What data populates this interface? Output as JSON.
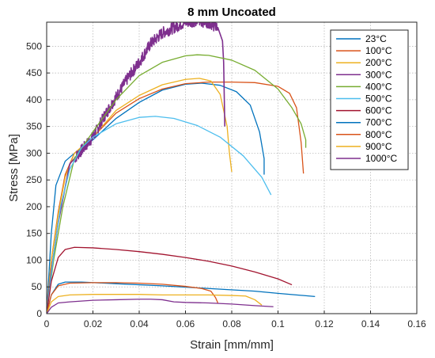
{
  "chart_data": {
    "type": "line",
    "title": "8 mm Uncoated",
    "xlabel": "Strain [mm/mm]",
    "ylabel": "Stress [MPa]",
    "xlim": [
      0,
      0.16
    ],
    "ylim": [
      0,
      545
    ],
    "xticks": [
      0,
      0.02,
      0.04,
      0.06,
      0.08,
      0.1,
      0.12,
      0.14,
      0.16
    ],
    "xtick_labels": [
      "0",
      "0.02",
      "0.04",
      "0.06",
      "0.08",
      "0.1",
      "0.12",
      "0.14",
      "0.16"
    ],
    "yticks": [
      0,
      50,
      100,
      150,
      200,
      250,
      300,
      350,
      400,
      450,
      500
    ],
    "ytick_labels": [
      "0",
      "50",
      "100",
      "150",
      "200",
      "250",
      "300",
      "350",
      "400",
      "450",
      "500"
    ],
    "grid": true,
    "legend_position": "top-right",
    "series": [
      {
        "name": "23°C",
        "color": "#0072BD",
        "noise": 0,
        "points": [
          [
            0,
            0
          ],
          [
            0.002,
            150
          ],
          [
            0.004,
            240
          ],
          [
            0.008,
            285
          ],
          [
            0.012,
            300
          ],
          [
            0.02,
            325
          ],
          [
            0.03,
            365
          ],
          [
            0.04,
            395
          ],
          [
            0.05,
            418
          ],
          [
            0.06,
            429
          ],
          [
            0.067,
            431
          ],
          [
            0.075,
            427
          ],
          [
            0.082,
            415
          ],
          [
            0.088,
            390
          ],
          [
            0.092,
            340
          ],
          [
            0.094,
            290
          ],
          [
            0.094,
            260
          ]
        ]
      },
      {
        "name": "100°C",
        "color": "#D95319",
        "noise": 0,
        "points": [
          [
            0,
            0
          ],
          [
            0.002,
            100
          ],
          [
            0.005,
            190
          ],
          [
            0.008,
            260
          ],
          [
            0.012,
            300
          ],
          [
            0.02,
            330
          ],
          [
            0.03,
            375
          ],
          [
            0.04,
            402
          ],
          [
            0.05,
            420
          ],
          [
            0.06,
            430
          ],
          [
            0.07,
            433
          ],
          [
            0.08,
            433
          ],
          [
            0.09,
            432
          ],
          [
            0.1,
            425
          ],
          [
            0.105,
            412
          ],
          [
            0.108,
            385
          ],
          [
            0.11,
            320
          ],
          [
            0.111,
            262
          ]
        ]
      },
      {
        "name": "200°C",
        "color": "#EDB120",
        "noise": 0,
        "points": [
          [
            0,
            0
          ],
          [
            0.002,
            100
          ],
          [
            0.005,
            185
          ],
          [
            0.008,
            255
          ],
          [
            0.012,
            300
          ],
          [
            0.02,
            330
          ],
          [
            0.03,
            380
          ],
          [
            0.04,
            408
          ],
          [
            0.05,
            428
          ],
          [
            0.06,
            438
          ],
          [
            0.066,
            440
          ],
          [
            0.071,
            435
          ],
          [
            0.075,
            410
          ],
          [
            0.078,
            350
          ],
          [
            0.079,
            300
          ],
          [
            0.08,
            265
          ]
        ]
      },
      {
        "name": "300°C",
        "color": "#7E2F8E",
        "noise": 0,
        "points": [
          [
            0,
            0
          ],
          [
            0.002,
            80
          ],
          [
            0.005,
            170
          ],
          [
            0.01,
            280
          ],
          [
            0.015,
            305
          ],
          [
            0.02,
            330
          ],
          [
            0.025,
            370
          ],
          [
            0.03,
            405
          ],
          [
            0.035,
            440
          ],
          [
            0.04,
            470
          ],
          [
            0.045,
            505
          ],
          [
            0.05,
            525
          ],
          [
            0.055,
            535
          ],
          [
            0.06,
            545
          ],
          [
            0.065,
            548
          ],
          [
            0.07,
            545
          ],
          [
            0.074,
            535
          ],
          [
            0.076,
            510
          ],
          [
            0.0765,
            470
          ],
          [
            0.077,
            350
          ]
        ]
      },
      {
        "name": "400°C",
        "color": "#77AC30",
        "noise": 0,
        "points": [
          [
            0,
            0
          ],
          [
            0.003,
            100
          ],
          [
            0.007,
            200
          ],
          [
            0.012,
            290
          ],
          [
            0.02,
            340
          ],
          [
            0.03,
            400
          ],
          [
            0.04,
            445
          ],
          [
            0.05,
            470
          ],
          [
            0.06,
            482
          ],
          [
            0.065,
            484
          ],
          [
            0.07,
            483
          ],
          [
            0.08,
            474
          ],
          [
            0.09,
            455
          ],
          [
            0.1,
            420
          ],
          [
            0.106,
            385
          ],
          [
            0.11,
            355
          ],
          [
            0.112,
            325
          ],
          [
            0.112,
            310
          ]
        ]
      },
      {
        "name": "500°C",
        "color": "#4DBEEE",
        "noise": 0,
        "points": [
          [
            0,
            0
          ],
          [
            0.003,
            110
          ],
          [
            0.006,
            200
          ],
          [
            0.01,
            270
          ],
          [
            0.015,
            310
          ],
          [
            0.02,
            330
          ],
          [
            0.03,
            355
          ],
          [
            0.04,
            367
          ],
          [
            0.047,
            369
          ],
          [
            0.055,
            365
          ],
          [
            0.065,
            352
          ],
          [
            0.075,
            330
          ],
          [
            0.085,
            295
          ],
          [
            0.093,
            255
          ],
          [
            0.097,
            222
          ]
        ]
      },
      {
        "name": "600°C",
        "color": "#A2142F",
        "noise": 0,
        "points": [
          [
            0,
            0
          ],
          [
            0.002,
            60
          ],
          [
            0.005,
            105
          ],
          [
            0.008,
            120
          ],
          [
            0.012,
            124
          ],
          [
            0.02,
            123
          ],
          [
            0.03,
            120
          ],
          [
            0.04,
            116
          ],
          [
            0.05,
            111
          ],
          [
            0.06,
            105
          ],
          [
            0.07,
            98
          ],
          [
            0.08,
            89
          ],
          [
            0.09,
            78
          ],
          [
            0.1,
            65
          ],
          [
            0.106,
            54
          ]
        ]
      },
      {
        "name": "700°C",
        "color": "#0072BD",
        "noise": 0,
        "points": [
          [
            0,
            0
          ],
          [
            0.002,
            35
          ],
          [
            0.005,
            55
          ],
          [
            0.008,
            59
          ],
          [
            0.015,
            59
          ],
          [
            0.03,
            56
          ],
          [
            0.05,
            52
          ],
          [
            0.07,
            47
          ],
          [
            0.09,
            42
          ],
          [
            0.1,
            38
          ],
          [
            0.116,
            32
          ]
        ]
      },
      {
        "name": "800°C",
        "color": "#D95319",
        "noise": 0,
        "points": [
          [
            0,
            0
          ],
          [
            0.002,
            35
          ],
          [
            0.005,
            52
          ],
          [
            0.01,
            57
          ],
          [
            0.02,
            58
          ],
          [
            0.03,
            58
          ],
          [
            0.04,
            57
          ],
          [
            0.05,
            55
          ],
          [
            0.06,
            51
          ],
          [
            0.067,
            47
          ],
          [
            0.071,
            42
          ],
          [
            0.073,
            30
          ],
          [
            0.074,
            20
          ]
        ]
      },
      {
        "name": "900°C",
        "color": "#EDB120",
        "noise": 0,
        "points": [
          [
            0,
            0
          ],
          [
            0.002,
            22
          ],
          [
            0.005,
            32
          ],
          [
            0.01,
            35
          ],
          [
            0.02,
            36
          ],
          [
            0.03,
            36
          ],
          [
            0.04,
            36
          ],
          [
            0.05,
            35
          ],
          [
            0.06,
            35
          ],
          [
            0.07,
            35
          ],
          [
            0.08,
            34
          ],
          [
            0.086,
            33
          ],
          [
            0.09,
            26
          ],
          [
            0.093,
            16
          ]
        ]
      },
      {
        "name": "1000°C",
        "color": "#7E2F8E",
        "noise": 0,
        "points": [
          [
            0,
            0
          ],
          [
            0.002,
            12
          ],
          [
            0.005,
            20
          ],
          [
            0.01,
            22
          ],
          [
            0.02,
            25
          ],
          [
            0.03,
            26
          ],
          [
            0.04,
            27
          ],
          [
            0.045,
            27
          ],
          [
            0.05,
            26
          ],
          [
            0.055,
            22
          ],
          [
            0.06,
            21
          ],
          [
            0.07,
            20
          ],
          [
            0.08,
            18
          ],
          [
            0.09,
            15
          ],
          [
            0.098,
            13
          ]
        ]
      }
    ]
  }
}
